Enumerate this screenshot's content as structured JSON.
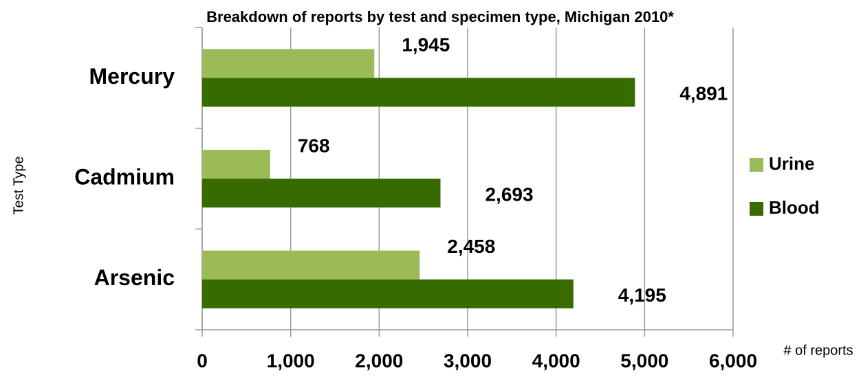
{
  "chart_data": {
    "type": "bar",
    "orientation": "horizontal",
    "title": "Breakdown of reports by test and specimen type, Michigan 2010*",
    "y_label": "Test Type",
    "x_label": "# of reports",
    "categories": [
      "Mercury",
      "Cadmium",
      "Arsenic"
    ],
    "series": [
      {
        "name": "Urine",
        "color": "#9bbb59",
        "values": [
          1945,
          768,
          2458
        ],
        "value_labels": [
          "1,945",
          "768",
          "2,458"
        ]
      },
      {
        "name": "Blood",
        "color": "#376b00",
        "values": [
          4891,
          2693,
          4195
        ],
        "value_labels": [
          "4,891",
          "2,693",
          "4,195"
        ]
      }
    ],
    "xlim": [
      0,
      6000
    ],
    "xticks": [
      0,
      {
        "value": 1000,
        "label": "1,000"
      },
      {
        "value": 2000,
        "label": "2,000"
      },
      {
        "value": 3000,
        "label": "3,000"
      },
      {
        "value": 4000,
        "label": "4,000"
      },
      {
        "value": 5000,
        "label": "5,000"
      },
      {
        "value": 6000,
        "label": "6,000"
      }
    ],
    "grid": true,
    "legend": "right"
  }
}
